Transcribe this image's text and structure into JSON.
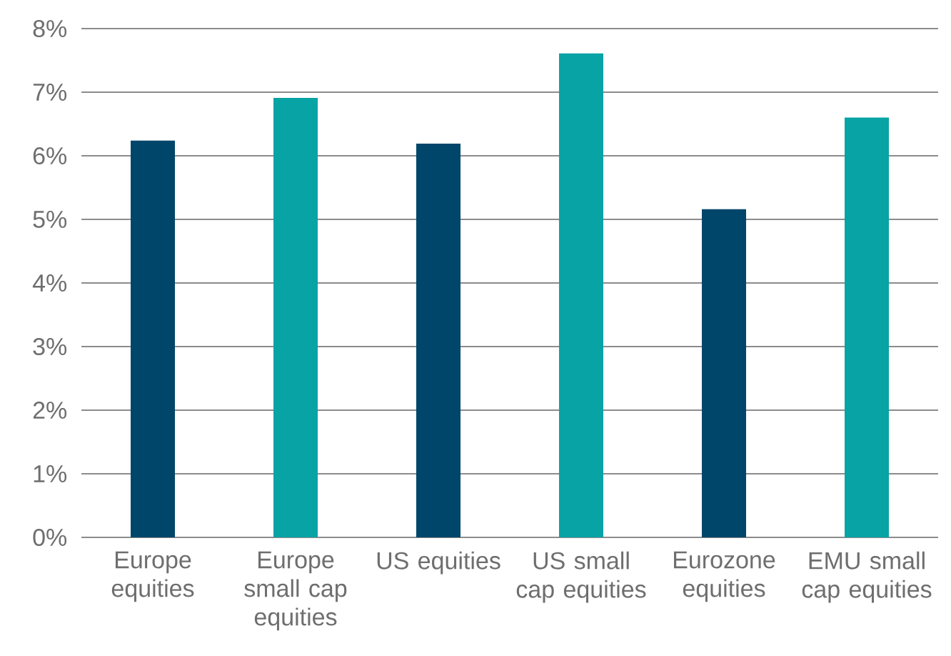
{
  "chart_data": {
    "type": "bar",
    "categories": [
      "Europe equities",
      "Europe small cap equities",
      "US equities",
      "US small cap equities",
      "Eurozone equities",
      "EMU small cap equities"
    ],
    "values": [
      6.24,
      6.91,
      6.19,
      7.61,
      5.16,
      6.6
    ],
    "colors": [
      "#00466a",
      "#07a3a5",
      "#00466a",
      "#07a3a5",
      "#00466a",
      "#07a3a5"
    ],
    "ylim": [
      0,
      8
    ],
    "yticks": [
      {
        "value": 0,
        "label": "0%"
      },
      {
        "value": 1,
        "label": "1%"
      },
      {
        "value": 2,
        "label": "2%"
      },
      {
        "value": 3,
        "label": "3%"
      },
      {
        "value": 4,
        "label": "4%"
      },
      {
        "value": 5,
        "label": "5%"
      },
      {
        "value": 6,
        "label": "6%"
      },
      {
        "value": 7,
        "label": "7%"
      },
      {
        "value": 8,
        "label": "8%"
      }
    ],
    "grid": "y"
  }
}
